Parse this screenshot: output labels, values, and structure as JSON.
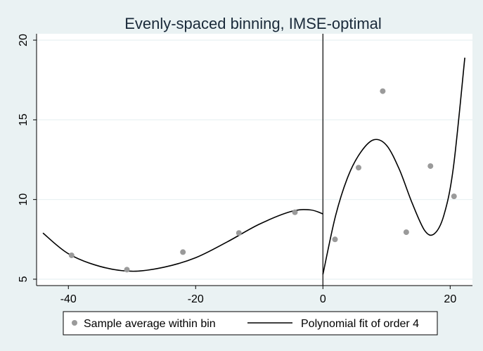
{
  "colors": {
    "background": "#eaf2f3",
    "plot_background": "#ffffff",
    "grid": "#eaf2f3",
    "points": "#9a9a9a",
    "line": "#000000",
    "title": "#1a2a3a"
  },
  "chart_data": {
    "type": "scatter",
    "title": "Evenly-spaced binning, IMSE-optimal",
    "xlabel": "",
    "ylabel": "",
    "xlim": [
      -45,
      23.5
    ],
    "ylim": [
      4.6,
      20.4
    ],
    "x_ticks": [
      -40,
      -20,
      0,
      20
    ],
    "y_ticks": [
      5,
      10,
      15,
      20
    ],
    "x_tick_labels": [
      "-40",
      "-20",
      "0",
      "20"
    ],
    "y_tick_labels": [
      "5",
      "10",
      "15",
      "20"
    ],
    "grid": true,
    "cutoff": 0,
    "legend_position": "bottom",
    "series": [
      {
        "name": "Sample average within bin",
        "kind": "scatter",
        "points": [
          {
            "x": -39.5,
            "y": 6.5
          },
          {
            "x": -30.8,
            "y": 5.6
          },
          {
            "x": -22.0,
            "y": 6.7
          },
          {
            "x": -13.2,
            "y": 7.9
          },
          {
            "x": -4.4,
            "y": 9.2
          },
          {
            "x": 1.9,
            "y": 7.5
          },
          {
            "x": 5.6,
            "y": 12.0
          },
          {
            "x": 9.4,
            "y": 16.8
          },
          {
            "x": 13.1,
            "y": 7.95
          },
          {
            "x": 16.9,
            "y": 12.1
          },
          {
            "x": 20.6,
            "y": 10.2
          }
        ]
      },
      {
        "name": "Polynomial fit of order 4",
        "kind": "line",
        "segments": [
          [
            {
              "x": -44.0,
              "y": 7.9
            },
            {
              "x": -40.0,
              "y": 6.6
            },
            {
              "x": -35.0,
              "y": 5.8
            },
            {
              "x": -30.0,
              "y": 5.5
            },
            {
              "x": -25.0,
              "y": 5.75
            },
            {
              "x": -20.0,
              "y": 6.35
            },
            {
              "x": -15.0,
              "y": 7.35
            },
            {
              "x": -10.0,
              "y": 8.45
            },
            {
              "x": -5.0,
              "y": 9.25
            },
            {
              "x": -2.0,
              "y": 9.35
            },
            {
              "x": 0.0,
              "y": 9.1
            }
          ],
          [
            {
              "x": 0.0,
              "y": 5.3
            },
            {
              "x": 2.0,
              "y": 9.0
            },
            {
              "x": 4.0,
              "y": 11.5
            },
            {
              "x": 6.0,
              "y": 13.0
            },
            {
              "x": 8.0,
              "y": 13.75
            },
            {
              "x": 10.0,
              "y": 13.4
            },
            {
              "x": 12.0,
              "y": 11.9
            },
            {
              "x": 14.0,
              "y": 9.8
            },
            {
              "x": 16.0,
              "y": 8.05
            },
            {
              "x": 17.5,
              "y": 7.85
            },
            {
              "x": 19.0,
              "y": 9.0
            },
            {
              "x": 20.5,
              "y": 12.0
            },
            {
              "x": 22.3,
              "y": 18.9
            }
          ]
        ]
      }
    ]
  }
}
